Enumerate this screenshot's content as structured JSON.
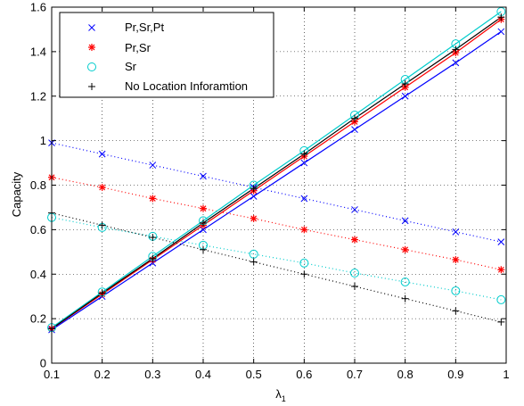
{
  "chart_data": {
    "type": "line",
    "xlabel": "λ",
    "xlabel_subscript": "1",
    "ylabel": "Capacity",
    "xlim": [
      0.1,
      1
    ],
    "ylim": [
      0,
      1.6
    ],
    "x_ticks": [
      0.1,
      0.2,
      0.3,
      0.4,
      0.5,
      0.6,
      0.7,
      0.8,
      0.9,
      1
    ],
    "x_tick_labels": [
      "0.1",
      "0.2",
      "0.3",
      "0.4",
      "0.5",
      "0.6",
      "0.7",
      "0.8",
      "0.9",
      "1"
    ],
    "y_ticks": [
      0,
      0.2,
      0.4,
      0.6,
      0.8,
      1,
      1.2,
      1.4,
      1.6
    ],
    "y_tick_labels": [
      "0",
      "0.2",
      "0.4",
      "0.6",
      "0.8",
      "1",
      "1.2",
      "1.4",
      "1.6"
    ],
    "grid": true,
    "legend_position": "top-left",
    "x": [
      0.1,
      0.2,
      0.3,
      0.4,
      0.5,
      0.6,
      0.7,
      0.8,
      0.9,
      0.99
    ],
    "series": [
      {
        "name": "Pr,Sr,Pt",
        "color": "#0000ff",
        "marker": "x",
        "rising": [
          0.15,
          0.3,
          0.45,
          0.6,
          0.75,
          0.9,
          1.05,
          1.2,
          1.35,
          1.49
        ],
        "falling": [
          0.99,
          0.94,
          0.89,
          0.84,
          0.79,
          0.74,
          0.69,
          0.64,
          0.59,
          0.545
        ]
      },
      {
        "name": "Pr,Sr",
        "color": "#ff0000",
        "marker": "*",
        "rising": [
          0.155,
          0.31,
          0.465,
          0.62,
          0.775,
          0.93,
          1.085,
          1.24,
          1.395,
          1.545
        ],
        "falling": [
          0.835,
          0.79,
          0.74,
          0.695,
          0.65,
          0.6,
          0.555,
          0.51,
          0.465,
          0.42
        ]
      },
      {
        "name": "Sr",
        "color": "#00cccc",
        "marker": "o",
        "rising": [
          0.16,
          0.32,
          0.48,
          0.64,
          0.8,
          0.955,
          1.115,
          1.275,
          1.435,
          1.58
        ],
        "falling": [
          0.655,
          0.61,
          0.57,
          0.53,
          0.49,
          0.45,
          0.405,
          0.365,
          0.325,
          0.285
        ]
      },
      {
        "name": "No Location Inforamtion",
        "color": "#000000",
        "marker": "+",
        "rising": [
          0.155,
          0.315,
          0.47,
          0.63,
          0.785,
          0.94,
          1.1,
          1.255,
          1.41,
          1.555
        ],
        "falling": [
          0.675,
          0.62,
          0.565,
          0.51,
          0.455,
          0.4,
          0.345,
          0.29,
          0.235,
          0.185
        ]
      }
    ]
  }
}
